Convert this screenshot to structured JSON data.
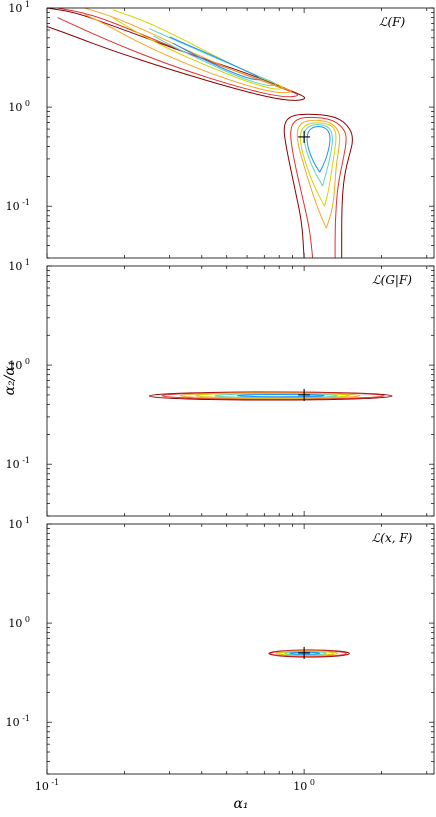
{
  "chart_data": [
    {
      "type": "contour",
      "label": "ℒ(F)",
      "x_scale": "log",
      "y_scale": "log",
      "xlim": [
        0.1,
        3.2
      ],
      "ylim": [
        0.03,
        10
      ],
      "x_ticks": [
        {
          "base": "10",
          "exp": "-1"
        },
        {
          "base": "10",
          "exp": "0"
        }
      ],
      "y_ticks": [
        {
          "base": "10",
          "exp": "1"
        },
        {
          "base": "10",
          "exp": "0"
        },
        {
          "base": "10",
          "exp": "-1"
        }
      ],
      "marker": {
        "x": 1.0,
        "y": 0.5,
        "symbol": "+"
      },
      "contours": [
        {
          "color": "#8b0000",
          "points": [
            [
              0.1,
              10
            ],
            [
              0.13,
              9
            ],
            [
              0.2,
              6
            ],
            [
              0.35,
              3.5
            ],
            [
              0.6,
              2.2
            ],
            [
              0.9,
              1.45
            ],
            [
              1.05,
              1.2
            ],
            [
              0.85,
              1.15
            ],
            [
              0.55,
              1.5
            ],
            [
              0.3,
              2.4
            ],
            [
              0.18,
              3.7
            ],
            [
              0.12,
              5.5
            ],
            [
              0.1,
              6.5
            ]
          ]
        },
        {
          "color": "#e03030",
          "points": [
            [
              0.11,
              10
            ],
            [
              0.15,
              8.6
            ],
            [
              0.22,
              5.8
            ],
            [
              0.36,
              3.4
            ],
            [
              0.6,
              2.1
            ],
            [
              0.85,
              1.5
            ],
            [
              0.98,
              1.3
            ],
            [
              0.82,
              1.25
            ],
            [
              0.55,
              1.6
            ],
            [
              0.32,
              2.5
            ],
            [
              0.2,
              4
            ],
            [
              0.14,
              6
            ],
            [
              0.11,
              8
            ]
          ]
        },
        {
          "color": "#f5a623",
          "points": [
            [
              0.14,
              10
            ],
            [
              0.18,
              8.2
            ],
            [
              0.25,
              5.7
            ],
            [
              0.38,
              3.4
            ],
            [
              0.6,
              2.05
            ],
            [
              0.82,
              1.58
            ],
            [
              0.92,
              1.42
            ],
            [
              0.78,
              1.38
            ],
            [
              0.55,
              1.75
            ],
            [
              0.35,
              2.7
            ],
            [
              0.23,
              4.4
            ],
            [
              0.17,
              6.8
            ],
            [
              0.14,
              8.6
            ]
          ]
        },
        {
          "color": "#d4d400",
          "points": [
            [
              0.18,
              9.6
            ],
            [
              0.24,
              7.4
            ],
            [
              0.33,
              5
            ],
            [
              0.48,
              3
            ],
            [
              0.68,
              1.95
            ],
            [
              0.85,
              1.58
            ],
            [
              0.78,
              1.48
            ],
            [
              0.6,
              1.8
            ],
            [
              0.42,
              2.6
            ],
            [
              0.3,
              3.8
            ],
            [
              0.22,
              5.8
            ],
            [
              0.18,
              8
            ]
          ]
        },
        {
          "color": "#5fd4c0",
          "points": [
            [
              0.25,
              6.2
            ],
            [
              0.35,
              4.2
            ],
            [
              0.5,
              2.8
            ],
            [
              0.68,
              2
            ],
            [
              0.8,
              1.68
            ],
            [
              0.72,
              1.62
            ],
            [
              0.56,
              2
            ],
            [
              0.42,
              2.8
            ],
            [
              0.32,
              3.9
            ],
            [
              0.26,
              5.2
            ]
          ]
        },
        {
          "color": "#1e90ff",
          "points": [
            [
              0.3,
              5.1
            ],
            [
              0.4,
              3.7
            ],
            [
              0.55,
              2.55
            ],
            [
              0.7,
              1.9
            ],
            [
              0.63,
              1.88
            ],
            [
              0.5,
              2.35
            ],
            [
              0.38,
              3.3
            ],
            [
              0.31,
              4.4
            ]
          ]
        },
        {
          "color": "#8b0000",
          "points": [
            [
              1.0,
              0.03
            ],
            [
              0.98,
              0.07
            ],
            [
              0.92,
              0.15
            ],
            [
              0.85,
              0.4
            ],
            [
              0.83,
              0.65
            ],
            [
              0.88,
              0.82
            ],
            [
              1.05,
              0.86
            ],
            [
              1.35,
              0.8
            ],
            [
              1.52,
              0.6
            ],
            [
              1.55,
              0.45
            ],
            [
              1.5,
              0.33
            ],
            [
              1.43,
              0.2
            ],
            [
              1.4,
              0.1
            ],
            [
              1.4,
              0.03
            ]
          ]
        },
        {
          "color": "#e03030",
          "points": [
            [
              1.08,
              0.03
            ],
            [
              1.05,
              0.06
            ],
            [
              0.98,
              0.13
            ],
            [
              0.9,
              0.35
            ],
            [
              0.88,
              0.6
            ],
            [
              0.93,
              0.76
            ],
            [
              1.07,
              0.8
            ],
            [
              1.3,
              0.75
            ],
            [
              1.45,
              0.58
            ],
            [
              1.46,
              0.44
            ],
            [
              1.42,
              0.3
            ],
            [
              1.35,
              0.16
            ],
            [
              1.32,
              0.07
            ],
            [
              1.32,
              0.03
            ]
          ]
        },
        {
          "color": "#f5a623",
          "points": [
            [
              1.22,
              0.06
            ],
            [
              1.12,
              0.1
            ],
            [
              1.0,
              0.25
            ],
            [
              0.93,
              0.5
            ],
            [
              0.96,
              0.7
            ],
            [
              1.1,
              0.75
            ],
            [
              1.28,
              0.7
            ],
            [
              1.38,
              0.55
            ],
            [
              1.37,
              0.4
            ],
            [
              1.33,
              0.25
            ],
            [
              1.3,
              0.1
            ],
            [
              1.22,
              0.06
            ]
          ]
        },
        {
          "color": "#d4d400",
          "points": [
            [
              1.2,
              0.1
            ],
            [
              1.08,
              0.17
            ],
            [
              0.98,
              0.35
            ],
            [
              0.96,
              0.55
            ],
            [
              1.02,
              0.68
            ],
            [
              1.15,
              0.7
            ],
            [
              1.3,
              0.65
            ],
            [
              1.34,
              0.5
            ],
            [
              1.3,
              0.3
            ],
            [
              1.25,
              0.15
            ],
            [
              1.2,
              0.1
            ]
          ]
        },
        {
          "color": "#5fd4c0",
          "points": [
            [
              1.18,
              0.16
            ],
            [
              1.08,
              0.24
            ],
            [
              1.0,
              0.42
            ],
            [
              1.0,
              0.6
            ],
            [
              1.1,
              0.68
            ],
            [
              1.25,
              0.64
            ],
            [
              1.3,
              0.5
            ],
            [
              1.26,
              0.3
            ],
            [
              1.18,
              0.16
            ]
          ]
        },
        {
          "color": "#1e90ff",
          "points": [
            [
              1.15,
              0.22
            ],
            [
              1.07,
              0.3
            ],
            [
              1.02,
              0.45
            ],
            [
              1.04,
              0.6
            ],
            [
              1.14,
              0.65
            ],
            [
              1.24,
              0.6
            ],
            [
              1.27,
              0.47
            ],
            [
              1.22,
              0.3
            ],
            [
              1.15,
              0.22
            ]
          ]
        }
      ]
    },
    {
      "type": "contour",
      "label": "ℒ(G|F)",
      "x_scale": "log",
      "y_scale": "log",
      "xlim": [
        0.1,
        3.2
      ],
      "ylim": [
        0.03,
        10
      ],
      "x_ticks": [
        {
          "base": "10",
          "exp": "-1"
        },
        {
          "base": "10",
          "exp": "0"
        }
      ],
      "y_ticks": [
        {
          "base": "10",
          "exp": "1"
        },
        {
          "base": "10",
          "exp": "0"
        },
        {
          "base": "10",
          "exp": "-1"
        }
      ],
      "marker": {
        "x": 1.0,
        "y": 0.5,
        "symbol": "+"
      },
      "ellipses": [
        {
          "color": "#8b0000",
          "x_min": 0.25,
          "x_max": 2.2,
          "y_min": 0.445,
          "y_max": 0.535
        },
        {
          "color": "#e03030",
          "x_min": 0.28,
          "x_max": 2.05,
          "y_min": 0.452,
          "y_max": 0.53
        },
        {
          "color": "#f5a623",
          "x_min": 0.33,
          "x_max": 1.65,
          "y_min": 0.46,
          "y_max": 0.525
        },
        {
          "color": "#d4d400",
          "x_min": 0.38,
          "x_max": 1.5,
          "y_min": 0.465,
          "y_max": 0.52
        },
        {
          "color": "#5fd4c0",
          "x_min": 0.45,
          "x_max": 1.35,
          "y_min": 0.472,
          "y_max": 0.512
        },
        {
          "color": "#1e90ff",
          "x_min": 0.55,
          "x_max": 1.2,
          "y_min": 0.48,
          "y_max": 0.505
        }
      ]
    },
    {
      "type": "contour",
      "label": "ℒ(x, F)",
      "x_scale": "log",
      "y_scale": "log",
      "xlim": [
        0.1,
        3.2
      ],
      "ylim": [
        0.03,
        10
      ],
      "x_ticks": [
        {
          "base": "10",
          "exp": "-1"
        },
        {
          "base": "10",
          "exp": "0"
        }
      ],
      "y_ticks": [
        {
          "base": "10",
          "exp": "1"
        },
        {
          "base": "10",
          "exp": "0"
        },
        {
          "base": "10",
          "exp": "-1"
        }
      ],
      "marker": {
        "x": 1.0,
        "y": 0.5,
        "symbol": "+"
      },
      "ellipses": [
        {
          "color": "#8b0000",
          "x_min": 0.73,
          "x_max": 1.5,
          "y_min": 0.455,
          "y_max": 0.535
        },
        {
          "color": "#e03030",
          "x_min": 0.74,
          "x_max": 1.46,
          "y_min": 0.46,
          "y_max": 0.53
        },
        {
          "color": "#f5a623",
          "x_min": 0.78,
          "x_max": 1.35,
          "y_min": 0.468,
          "y_max": 0.524
        },
        {
          "color": "#d4d400",
          "x_min": 0.8,
          "x_max": 1.3,
          "y_min": 0.472,
          "y_max": 0.52
        },
        {
          "color": "#5fd4c0",
          "x_min": 0.84,
          "x_max": 1.22,
          "y_min": 0.478,
          "y_max": 0.514
        },
        {
          "color": "#1e90ff",
          "x_min": 0.88,
          "x_max": 1.15,
          "y_min": 0.484,
          "y_max": 0.508
        }
      ]
    }
  ],
  "xlabel": "α₁",
  "ylabel": "α₂/α₁"
}
